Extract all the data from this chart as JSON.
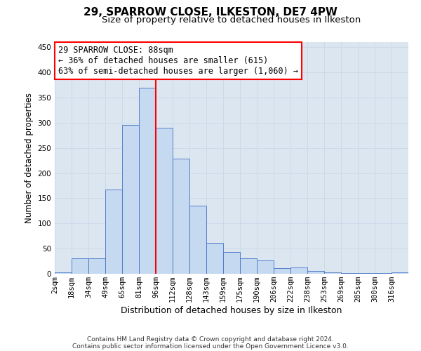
{
  "title1": "29, SPARROW CLOSE, ILKESTON, DE7 4PW",
  "title2": "Size of property relative to detached houses in Ilkeston",
  "xlabel": "Distribution of detached houses by size in Ilkeston",
  "ylabel": "Number of detached properties",
  "categories": [
    "2sqm",
    "18sqm",
    "34sqm",
    "49sqm",
    "65sqm",
    "81sqm",
    "96sqm",
    "112sqm",
    "128sqm",
    "143sqm",
    "159sqm",
    "175sqm",
    "190sqm",
    "206sqm",
    "222sqm",
    "238sqm",
    "253sqm",
    "269sqm",
    "285sqm",
    "300sqm",
    "316sqm"
  ],
  "bar_heights": [
    3,
    30,
    30,
    167,
    295,
    370,
    290,
    228,
    135,
    62,
    43,
    30,
    27,
    11,
    13,
    5,
    3,
    2,
    1,
    1,
    3
  ],
  "bar_color": "#c5d9f1",
  "bar_edge_color": "#4472c4",
  "vline_color": "#ff0000",
  "annotation_text": "29 SPARROW CLOSE: 88sqm\n← 36% of detached houses are smaller (615)\n63% of semi-detached houses are larger (1,060) →",
  "ylim": [
    0,
    460
  ],
  "yticks": [
    0,
    50,
    100,
    150,
    200,
    250,
    300,
    350,
    400,
    450
  ],
  "grid_color": "#c8d8e8",
  "plot_bg_color": "#dce6f1",
  "footer1": "Contains HM Land Registry data © Crown copyright and database right 2024.",
  "footer2": "Contains public sector information licensed under the Open Government Licence v3.0.",
  "title1_fontsize": 11,
  "title2_fontsize": 9.5,
  "xlabel_fontsize": 9,
  "ylabel_fontsize": 8.5,
  "tick_fontsize": 7.5,
  "annotation_fontsize": 8.5,
  "footer_fontsize": 6.5
}
